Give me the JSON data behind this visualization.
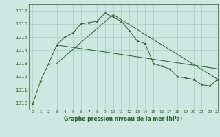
{
  "title": "Graphe pression niveau de la mer (hPa)",
  "background_color": "#cce8e0",
  "grid_color": "#aacec6",
  "line_color": "#2d5a2d",
  "xlim": [
    -0.5,
    23
  ],
  "ylim": [
    1009.5,
    1017.5
  ],
  "yticks": [
    1010,
    1011,
    1012,
    1013,
    1014,
    1015,
    1016,
    1017
  ],
  "xticks": [
    0,
    1,
    2,
    3,
    4,
    5,
    6,
    7,
    8,
    9,
    10,
    11,
    12,
    13,
    14,
    15,
    16,
    17,
    18,
    19,
    20,
    21,
    22,
    23
  ],
  "series1_x": [
    0,
    1,
    2,
    3,
    4,
    5,
    6,
    7,
    8,
    9,
    10,
    11,
    12,
    13,
    14,
    15,
    16,
    17,
    18,
    19,
    20,
    21,
    22,
    23
  ],
  "series1_y": [
    1009.9,
    1011.7,
    1013.0,
    1014.4,
    1015.0,
    1015.3,
    1016.0,
    1016.1,
    1016.2,
    1016.8,
    1016.5,
    1016.2,
    1015.5,
    1014.7,
    1014.5,
    1013.0,
    1012.8,
    1012.6,
    1012.0,
    1011.9,
    1011.8,
    1011.4,
    1011.3,
    1011.8
  ],
  "series2_x": [
    3,
    10,
    23
  ],
  "series2_y": [
    1013.0,
    1016.7,
    1011.8
  ],
  "series3_x": [
    3,
    23
  ],
  "series3_y": [
    1014.4,
    1012.6
  ]
}
